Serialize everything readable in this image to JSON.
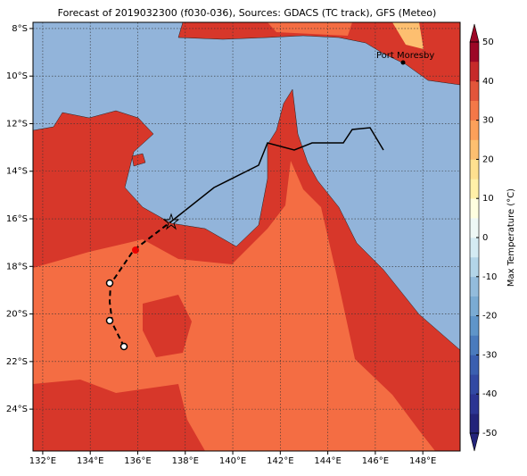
{
  "chart_data": {
    "type": "map",
    "title": "Forecast of 2019032300 (f030-036), Sources: GDACS (TC track), GFS (Meteo)",
    "xlim": [
      131.59,
      149.57
    ],
    "ylim": [
      -25.76,
      -7.74
    ],
    "xticks": [
      {
        "value": 132,
        "label": "132°E"
      },
      {
        "value": 134,
        "label": "134°E"
      },
      {
        "value": 136,
        "label": "136°E"
      },
      {
        "value": 138,
        "label": "138°E"
      },
      {
        "value": 140,
        "label": "140°E"
      },
      {
        "value": 142,
        "label": "142°E"
      },
      {
        "value": 144,
        "label": "144°E"
      },
      {
        "value": 146,
        "label": "146°E"
      },
      {
        "value": 148,
        "label": "148°E"
      }
    ],
    "yticks": [
      {
        "value": -8,
        "label": "8°S"
      },
      {
        "value": -10,
        "label": "10°S"
      },
      {
        "value": -12,
        "label": "12°S"
      },
      {
        "value": -14,
        "label": "14°S"
      },
      {
        "value": -16,
        "label": "16°S"
      },
      {
        "value": -18,
        "label": "18°S"
      },
      {
        "value": -20,
        "label": "20°S"
      },
      {
        "value": -22,
        "label": "22°S"
      },
      {
        "value": -24,
        "label": "24°S"
      }
    ],
    "grid": true,
    "place_label": "Port Moresby",
    "colorbar": {
      "label": "Max Temperature (°C)",
      "lim": [
        -50,
        50
      ],
      "ticks": [
        -50,
        -40,
        -30,
        -20,
        -10,
        0,
        10,
        20,
        30,
        40,
        50
      ],
      "colors": [
        "#23247a",
        "#2c3593",
        "#3249a3",
        "#3a5fb0",
        "#4a7bbd",
        "#5f95c9",
        "#7aabd3",
        "#93bcdc",
        "#b3d5e8",
        "#d4ebf3",
        "#eef8f6",
        "#fefee0",
        "#fff0a8",
        "#fee08f",
        "#fdbf70",
        "#fca05a",
        "#f47848",
        "#e2553a",
        "#c62a2a",
        "#9c0726"
      ]
    }
  }
}
